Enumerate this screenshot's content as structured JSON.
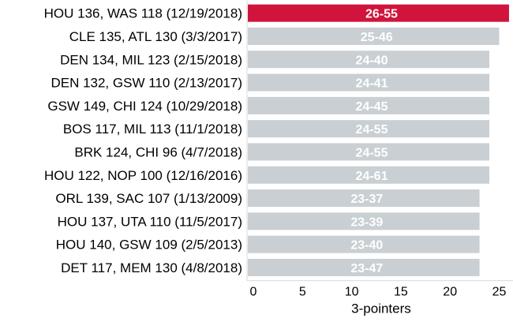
{
  "chart_data": {
    "type": "bar",
    "orientation": "horizontal",
    "categories": [
      "HOU 136, WAS 118 (12/19/2018)",
      "CLE 135, ATL 130 (3/3/2017)",
      "DEN 134, MIL 123 (2/15/2018)",
      "DEN 132, GSW 110 (2/13/2017)",
      "GSW 149, CHI 124 (10/29/2018)",
      "BOS 117, MIL 113 (11/1/2018)",
      "BRK 124, CHI 96 (4/7/2018)",
      "HOU 122, NOP 100 (12/16/2016)",
      "ORL 139, SAC 107 (1/13/2009)",
      "HOU 137, UTA 110 (11/5/2017)",
      "HOU 140, GSW 109 (2/5/2013)",
      "DET 117, MEM 130 (4/8/2018)"
    ],
    "values": [
      26,
      25,
      24,
      24,
      24,
      24,
      24,
      24,
      23,
      23,
      23,
      23
    ],
    "data_labels": [
      "26-55",
      "25-46",
      "24-40",
      "24-41",
      "24-45",
      "24-55",
      "24-55",
      "24-61",
      "23-37",
      "23-39",
      "23-40",
      "23-47"
    ],
    "xlabel": "3-pointers",
    "ylabel": "",
    "xlim": [
      0,
      26
    ],
    "xticks": [
      0,
      5,
      10,
      15,
      20,
      25
    ],
    "grid": false,
    "legend": "none",
    "colors": {
      "highlight": "#d0143c",
      "bar": "#c9cfd3",
      "axis": "#d9d9d9"
    },
    "highlight_index": 0
  }
}
